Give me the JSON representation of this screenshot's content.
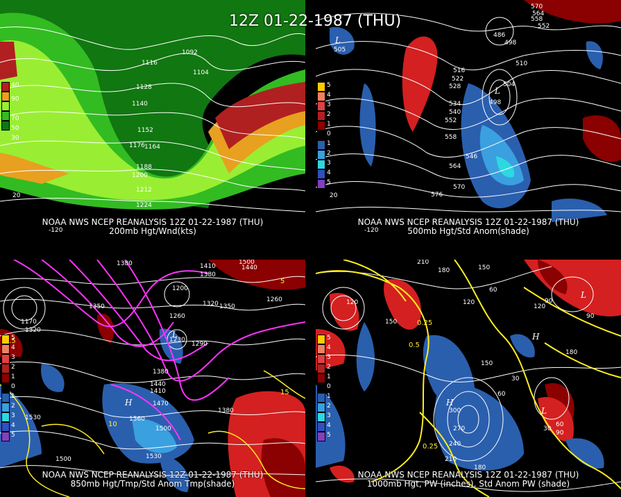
{
  "main_title": "12Z 01-22-1987 (THU)",
  "colors": {
    "background": "#000000",
    "contour": "#ffffff",
    "temp_contour": "#ff33ff",
    "pw_contour": "#ffee22",
    "anom_pos_strong": "#8b0000",
    "anom_pos": "#d42020",
    "anom_neg": "#2a5fae",
    "anom_neg_strong": "#3aa0e0",
    "wind_light": "#99ee33",
    "wind_mid": "#33bb22",
    "wind_dark": "#117711",
    "wind_orange": "#e8a020",
    "wind_red": "#b02020"
  },
  "panels": [
    {
      "id": "200mb",
      "caption_line1": "NOAA NWS NCEP REANALYSIS 12Z 01-22-1987 (THU)",
      "caption_line2": "200mb Hgt/Wnd(kts)",
      "legend": [
        "40",
        "90",
        "70",
        "50",
        "30",
        "20"
      ],
      "contour_labels": [
        "1116",
        "1092",
        "1104",
        "1128",
        "1140",
        "1152",
        "1176",
        "1164",
        "1188",
        "1200",
        "1212",
        "1224"
      ],
      "axis_labels": [
        "20",
        "-120"
      ]
    },
    {
      "id": "500mb",
      "caption_line1": "NOAA NWS NCEP REANALYSIS 12Z 01-22-1987 (THU)",
      "caption_line2": "500mb Hgt/Std Anom(shade)",
      "legend": [
        "5",
        "4",
        "3",
        "2",
        "1",
        "0",
        "1",
        "2",
        "3",
        "4",
        "5"
      ],
      "contour_labels": [
        "505",
        "486",
        "498",
        "510",
        "516",
        "522",
        "528",
        "534",
        "540",
        "552",
        "558",
        "498",
        "504",
        "546",
        "564",
        "570",
        "576",
        "570",
        "564",
        "558",
        "552"
      ],
      "axis_labels": [
        "20",
        "-120"
      ]
    },
    {
      "id": "850mb",
      "caption_line1": "NOAA NWS NCEP REANALYSIS 12Z 01-22-1987 (THU)",
      "caption_line2": "850mb Hgt/Tmp/Std Anom Tmp(shade)",
      "legend": [
        "5",
        "4",
        "3",
        "2",
        "1",
        "0",
        "1",
        "2",
        "3",
        "4",
        "5"
      ],
      "contour_labels": [
        "1380",
        "1410",
        "1380",
        "1500",
        "1440",
        "1200",
        "1350",
        "1320",
        "1350",
        "1260",
        "1290",
        "1380",
        "1410",
        "1440",
        "1470",
        "1560",
        "1500",
        "1530",
        "1530",
        "1500",
        "1380",
        "1230",
        "1260",
        "1170",
        "1320"
      ],
      "temp_labels": [
        "15",
        "10",
        "5",
        "15"
      ]
    },
    {
      "id": "1000mb",
      "caption_line1": "NOAA NWS NCEP REANALYSIS 12Z 01-22-1987 (THU)",
      "caption_line2": "1000mb Hgt, PW (inches), Std Anom PW (shade)",
      "legend": [
        "5",
        "4",
        "3",
        "2",
        "1",
        "0",
        "1",
        "2",
        "3",
        "4",
        "5"
      ],
      "contour_labels": [
        "210",
        "180",
        "150",
        "120",
        "60",
        "90",
        "120",
        "90",
        "150",
        "150",
        "180",
        "300",
        "270",
        "240",
        "210",
        "180",
        "30",
        "60",
        "90",
        "60",
        "30",
        "120"
      ],
      "pw_labels": [
        "0.25",
        "0.5",
        "0.25"
      ]
    }
  ]
}
